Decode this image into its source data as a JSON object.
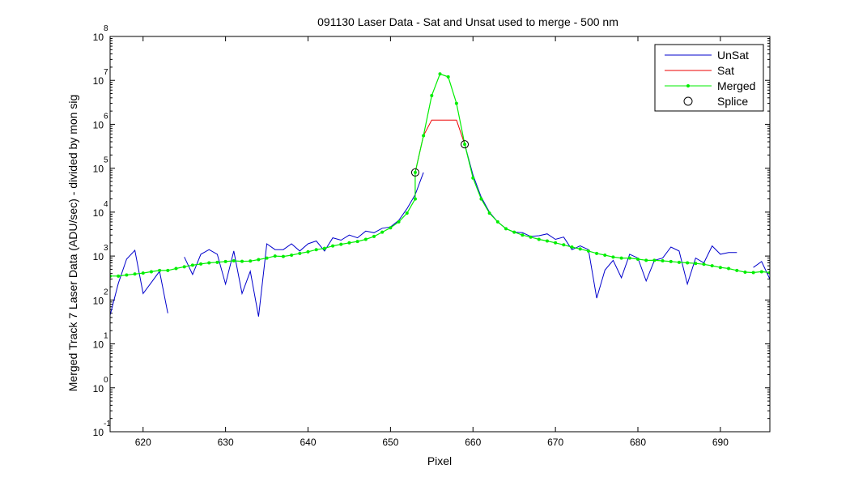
{
  "chart_data": {
    "type": "line",
    "title": "091130 Laser Data - Sat and Unsat used to merge  - 500 nm",
    "xlabel": "Pixel",
    "ylabel": "Merged Track 7 Laser Data (ADU/sec) - divided by mon sig",
    "xlim": [
      616,
      696
    ],
    "ylim_log10": [
      -1,
      8
    ],
    "yscale": "log",
    "x_ticks": [
      620,
      630,
      640,
      650,
      660,
      670,
      680,
      690
    ],
    "y_ticks": [
      {
        "base": "10",
        "exp": "-1"
      },
      {
        "base": "10",
        "exp": "0"
      },
      {
        "base": "10",
        "exp": "1"
      },
      {
        "base": "10",
        "exp": "2"
      },
      {
        "base": "10",
        "exp": "3"
      },
      {
        "base": "10",
        "exp": "4"
      },
      {
        "base": "10",
        "exp": "5"
      },
      {
        "base": "10",
        "exp": "6"
      },
      {
        "base": "10",
        "exp": "7"
      },
      {
        "base": "10",
        "exp": "8"
      }
    ],
    "legend_position": "top-right",
    "series": [
      {
        "name": "UnSat",
        "color": "#0000cc",
        "marker": "none",
        "segments": [
          [
            [
              616,
              45
            ],
            [
              617,
              240
            ],
            [
              618,
              850
            ],
            [
              619,
              1350
            ],
            [
              620,
              140
            ],
            [
              621,
              250
            ],
            [
              622,
              450
            ],
            [
              623,
              50
            ]
          ],
          [
            [
              625,
              950
            ],
            [
              626,
              380
            ],
            [
              627,
              1100
            ],
            [
              628,
              1400
            ],
            [
              629,
              1100
            ],
            [
              630,
              230
            ],
            [
              631,
              1300
            ],
            [
              632,
              140
            ],
            [
              633,
              450
            ],
            [
              634,
              42
            ],
            [
              635,
              1900
            ],
            [
              636,
              1400
            ],
            [
              637,
              1400
            ],
            [
              638,
              1900
            ],
            [
              639,
              1300
            ],
            [
              640,
              1900
            ],
            [
              641,
              2200
            ],
            [
              642,
              1300
            ],
            [
              643,
              2600
            ],
            [
              644,
              2300
            ],
            [
              645,
              3000
            ],
            [
              646,
              2600
            ],
            [
              647,
              3700
            ],
            [
              648,
              3400
            ],
            [
              649,
              4300
            ],
            [
              650,
              4600
            ],
            [
              651,
              6500
            ],
            [
              652,
              12000
            ],
            [
              653,
              25000
            ],
            [
              654,
              80000
            ]
          ],
          [
            [
              659,
              350000
            ],
            [
              660,
              70000
            ],
            [
              661,
              22000
            ],
            [
              662,
              10000
            ],
            [
              663,
              6000
            ],
            [
              664,
              4200
            ],
            [
              665,
              3500
            ],
            [
              666,
              3400
            ],
            [
              667,
              2800
            ],
            [
              668,
              2900
            ],
            [
              669,
              3200
            ],
            [
              670,
              2400
            ],
            [
              671,
              2700
            ],
            [
              672,
              1400
            ],
            [
              673,
              1700
            ],
            [
              674,
              1400
            ],
            [
              675,
              110
            ],
            [
              676,
              480
            ],
            [
              677,
              800
            ],
            [
              678,
              320
            ],
            [
              679,
              1100
            ],
            [
              680,
              900
            ],
            [
              681,
              270
            ],
            [
              682,
              800
            ],
            [
              683,
              900
            ],
            [
              684,
              1600
            ],
            [
              685,
              1300
            ],
            [
              686,
              230
            ],
            [
              687,
              900
            ],
            [
              688,
              700
            ],
            [
              689,
              1700
            ],
            [
              690,
              1100
            ],
            [
              691,
              1200
            ],
            [
              692,
              1200
            ]
          ],
          [
            [
              694,
              550
            ],
            [
              695,
              750
            ],
            [
              696,
              300
            ]
          ]
        ]
      },
      {
        "name": "Sat",
        "color": "#ee0000",
        "marker": "none",
        "segments": [
          [
            [
              653,
              80000
            ],
            [
              654,
              550000
            ],
            [
              655,
              1250000
            ],
            [
              656,
              1250000
            ],
            [
              657,
              1250000
            ],
            [
              658,
              1250000
            ],
            [
              659,
              350000
            ]
          ]
        ]
      },
      {
        "name": "Merged",
        "color": "#00ee00",
        "marker": "dot",
        "points": [
          [
            616,
            350
          ],
          [
            617,
            350
          ],
          [
            618,
            370
          ],
          [
            619,
            390
          ],
          [
            620,
            410
          ],
          [
            621,
            440
          ],
          [
            622,
            470
          ],
          [
            623,
            470
          ],
          [
            624,
            520
          ],
          [
            625,
            570
          ],
          [
            626,
            620
          ],
          [
            627,
            660
          ],
          [
            628,
            700
          ],
          [
            629,
            720
          ],
          [
            630,
            750
          ],
          [
            631,
            780
          ],
          [
            632,
            760
          ],
          [
            633,
            770
          ],
          [
            634,
            830
          ],
          [
            635,
            900
          ],
          [
            636,
            1000
          ],
          [
            637,
            980
          ],
          [
            638,
            1050
          ],
          [
            639,
            1150
          ],
          [
            640,
            1250
          ],
          [
            641,
            1400
          ],
          [
            642,
            1500
          ],
          [
            643,
            1700
          ],
          [
            644,
            1850
          ],
          [
            645,
            2000
          ],
          [
            646,
            2150
          ],
          [
            647,
            2400
          ],
          [
            648,
            2800
          ],
          [
            649,
            3500
          ],
          [
            650,
            4400
          ],
          [
            651,
            6000
          ],
          [
            652,
            9500
          ],
          [
            653,
            20000
          ],
          [
            653,
            80000
          ],
          [
            654,
            550000
          ],
          [
            655,
            4500000
          ],
          [
            656,
            14000000
          ],
          [
            657,
            12000000
          ],
          [
            658,
            3000000
          ],
          [
            659,
            350000
          ],
          [
            660,
            60000
          ],
          [
            661,
            20000
          ],
          [
            662,
            9500
          ],
          [
            663,
            6000
          ],
          [
            664,
            4200
          ],
          [
            665,
            3500
          ],
          [
            666,
            3000
          ],
          [
            667,
            2700
          ],
          [
            668,
            2400
          ],
          [
            669,
            2200
          ],
          [
            670,
            2000
          ],
          [
            671,
            1800
          ],
          [
            672,
            1600
          ],
          [
            673,
            1450
          ],
          [
            674,
            1300
          ],
          [
            675,
            1150
          ],
          [
            676,
            1050
          ],
          [
            677,
            950
          ],
          [
            678,
            900
          ],
          [
            679,
            900
          ],
          [
            680,
            850
          ],
          [
            681,
            800
          ],
          [
            682,
            800
          ],
          [
            683,
            780
          ],
          [
            684,
            750
          ],
          [
            685,
            720
          ],
          [
            686,
            700
          ],
          [
            687,
            680
          ],
          [
            688,
            650
          ],
          [
            689,
            600
          ],
          [
            690,
            550
          ],
          [
            691,
            520
          ],
          [
            692,
            470
          ],
          [
            693,
            430
          ],
          [
            694,
            420
          ],
          [
            695,
            440
          ],
          [
            696,
            420
          ]
        ]
      },
      {
        "name": "Splice",
        "color": "#000000",
        "marker": "circle",
        "points": [
          [
            653,
            80000
          ],
          [
            659,
            350000
          ]
        ]
      }
    ]
  }
}
